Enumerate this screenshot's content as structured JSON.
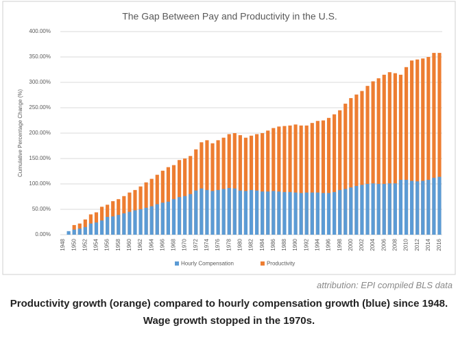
{
  "chart_data": {
    "type": "bar",
    "title": "The Gap Between Pay and Productivity in the U.S.",
    "y_label": "Cumulative Percentage Change (%)",
    "categories": [
      "1948",
      null,
      "1950",
      null,
      "1952",
      null,
      "1954",
      null,
      "1956",
      null,
      "1958",
      null,
      "1960",
      null,
      "1962",
      null,
      "1964",
      null,
      "1966",
      null,
      "1968",
      null,
      "1970",
      null,
      "1972",
      null,
      "1974",
      null,
      "1976",
      null,
      "1978",
      null,
      "1980",
      null,
      "1982",
      null,
      "1984",
      null,
      "1986",
      null,
      "1988",
      null,
      "1990",
      null,
      "1992",
      null,
      "1994",
      null,
      "1996",
      null,
      "1998",
      null,
      "2000",
      null,
      "2002",
      null,
      "2004",
      null,
      "2006",
      null,
      "2008",
      null,
      "2010",
      null,
      "2012",
      null,
      "2014",
      null,
      "2016"
    ],
    "series": [
      {
        "name": "Productivity",
        "color": "#ed7d31",
        "values": [
          0,
          3,
          19,
          22,
          30,
          40,
          44,
          55,
          59,
          66,
          70,
          76,
          83,
          88,
          95,
          103,
          110,
          118,
          126,
          133,
          137,
          147,
          150,
          155,
          168,
          182,
          186,
          180,
          186,
          191,
          198,
          200,
          196,
          191,
          195,
          198,
          200,
          205,
          210,
          213,
          214,
          215,
          217,
          215,
          215,
          220,
          224,
          225,
          230,
          237,
          245,
          258,
          269,
          276,
          283,
          293,
          302,
          308,
          315,
          320,
          318,
          315,
          330,
          343,
          345,
          347,
          350,
          358,
          358
        ]
      },
      {
        "name": "Hourly Compensation",
        "color": "#5b9bd5",
        "values": [
          0,
          7,
          10,
          12,
          15,
          22,
          24,
          28,
          35,
          36,
          39,
          42,
          45,
          48,
          50,
          53,
          56,
          60,
          63,
          65,
          70,
          74,
          76,
          80,
          87,
          91,
          88,
          86,
          88,
          90,
          92,
          91,
          87,
          86,
          88,
          87,
          85,
          85,
          86,
          85,
          84,
          84,
          83,
          82,
          83,
          83,
          83,
          82,
          82,
          84,
          88,
          90,
          93,
          96,
          98,
          100,
          101,
          100,
          100,
          101,
          101,
          108,
          108,
          106,
          105,
          106,
          108,
          112,
          114
        ]
      }
    ],
    "legend_order": [
      1,
      0
    ],
    "ylim": [
      0,
      400
    ],
    "yticks": [
      {
        "value": 0,
        "label": "0.00%"
      },
      {
        "value": 50,
        "label": "50.00%"
      },
      {
        "value": 100,
        "label": "100.00%"
      },
      {
        "value": 150,
        "label": "150.00%"
      },
      {
        "value": 200,
        "label": "200.00%"
      },
      {
        "value": 250,
        "label": "250.00%"
      },
      {
        "value": 300,
        "label": "300.00%"
      },
      {
        "value": 350,
        "label": "350.00%"
      },
      {
        "value": 400,
        "label": "400.00%"
      }
    ],
    "grid": true
  },
  "attribution": "attribution: EPI compiled BLS data",
  "caption": "Productivity growth (orange) compared to hourly compensation growth (blue) since 1948. Wage growth stopped in the 1970s."
}
